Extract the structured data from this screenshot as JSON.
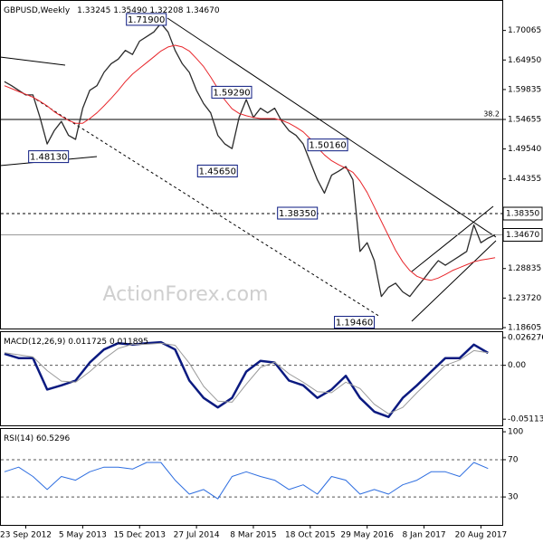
{
  "chart_data": [
    {
      "type": "line",
      "title": "GBPUSD,Weekly",
      "subtitle": "1.33245 1.35490 1.32208 1.34670",
      "watermark": "ActionForex.com",
      "x": [
        -12,
        -8,
        -4,
        0,
        4,
        8,
        12,
        16,
        20,
        24,
        28,
        32,
        36,
        40,
        44,
        48,
        52,
        56,
        60,
        64,
        68,
        72,
        76,
        80,
        84,
        88,
        92,
        96,
        100,
        104,
        108,
        112,
        116,
        120,
        124,
        128,
        132,
        136,
        140,
        144,
        148,
        152,
        156,
        160,
        164,
        168,
        172,
        176,
        180,
        184,
        188,
        192,
        196,
        200,
        204,
        208,
        212,
        216,
        220,
        224,
        228,
        232,
        236,
        240,
        244,
        248,
        252,
        256,
        260,
        264
      ],
      "xlim": [
        -14,
        268
      ],
      "series": [
        {
          "color": "#2b2b2b",
          "width": 1.3,
          "values": [
            1.612,
            1.605,
            1.597,
            1.589,
            1.589,
            1.55,
            1.504,
            1.527,
            1.543,
            1.519,
            1.512,
            1.566,
            1.597,
            1.605,
            1.628,
            1.643,
            1.651,
            1.666,
            1.659,
            1.682,
            1.69,
            1.698,
            1.713,
            1.698,
            1.666,
            1.643,
            1.628,
            1.597,
            1.574,
            1.558,
            1.519,
            1.504,
            1.496,
            1.55,
            1.581,
            1.55,
            1.566,
            1.558,
            1.566,
            1.543,
            1.527,
            1.519,
            1.504,
            1.473,
            1.442,
            1.419,
            1.45,
            1.457,
            1.465,
            1.442,
            1.318,
            1.333,
            1.302,
            1.24,
            1.256,
            1.263,
            1.248,
            1.24,
            1.256,
            1.271,
            1.287,
            1.302,
            1.294,
            1.302,
            1.31,
            1.318,
            1.364,
            1.333,
            1.341,
            1.3467
          ]
        },
        {
          "color": "#e8262b",
          "width": 1,
          "values": [
            1.605,
            1.6,
            1.595,
            1.59,
            1.585,
            1.578,
            1.57,
            1.56,
            1.552,
            1.545,
            1.54,
            1.54,
            1.548,
            1.558,
            1.57,
            1.583,
            1.597,
            1.612,
            1.625,
            1.635,
            1.645,
            1.655,
            1.665,
            1.672,
            1.675,
            1.672,
            1.665,
            1.652,
            1.638,
            1.62,
            1.6,
            1.58,
            1.565,
            1.557,
            1.553,
            1.55,
            1.548,
            1.548,
            1.548,
            1.545,
            1.54,
            1.533,
            1.525,
            1.513,
            1.498,
            1.485,
            1.475,
            1.468,
            1.462,
            1.455,
            1.44,
            1.42,
            1.395,
            1.37,
            1.345,
            1.32,
            1.3,
            1.285,
            1.275,
            1.27,
            1.268,
            1.272,
            1.278,
            1.285,
            1.29,
            1.295,
            1.3,
            1.303,
            1.305,
            1.307
          ]
        }
      ],
      "ylim": [
        1.1845,
        1.7518
      ],
      "yticks": [
        1.70065,
        {
          "value": 1.6495,
          "label": "1.64950"
        },
        1.59835,
        1.54655,
        {
          "value": 1.4954,
          "label": "1.49540"
        },
        1.44355,
        1.28835,
        {
          "value": 1.2372,
          "label": "1.23720"
        },
        1.18605
      ],
      "levels": [
        {
          "value": 1.54655,
          "label": "38.2"
        }
      ],
      "markers": [
        {
          "value": 1.3835,
          "label": "1.38350",
          "style": "dashed"
        },
        {
          "value": 1.3467,
          "label": "1.34670",
          "style": "solid"
        }
      ],
      "annotations": [
        {
          "x": 79,
          "value": 1.719,
          "label": "1.71900"
        },
        {
          "x": 127,
          "value": 1.5929,
          "label": "1.59290"
        },
        {
          "x": 119,
          "value": 1.4565,
          "label": "1.45650"
        },
        {
          "x": 181,
          "value": 1.5016,
          "label": "1.50160"
        },
        {
          "x": 164,
          "value": 1.3835,
          "label": "1.38350"
        },
        {
          "x": 196,
          "value": 1.1946,
          "label": "1.19460"
        },
        {
          "x": 24,
          "value": 1.4813,
          "label": "1.48130"
        }
      ]
    },
    {
      "type": "line",
      "title": "MACD(12,26,9) 0.011725 0.011895",
      "x": [
        -12,
        -4,
        4,
        12,
        20,
        28,
        36,
        44,
        52,
        60,
        68,
        76,
        84,
        92,
        100,
        108,
        116,
        124,
        132,
        140,
        148,
        156,
        164,
        172,
        180,
        188,
        196,
        204,
        212,
        220,
        228,
        236,
        244,
        252,
        260
      ],
      "xlim": [
        -14,
        268
      ],
      "series": [
        {
          "color": "#0b1a80",
          "width": 2.5,
          "values": [
            0.011,
            0.0068,
            0.0068,
            -0.023,
            -0.019,
            -0.0145,
            0.0026,
            0.015,
            0.021,
            0.0196,
            0.021,
            0.022,
            0.015,
            -0.0145,
            -0.031,
            -0.04,
            -0.031,
            -0.006,
            0.0043,
            0.0026,
            -0.0145,
            -0.019,
            -0.031,
            -0.023,
            -0.01,
            -0.031,
            -0.044,
            -0.049,
            -0.031,
            -0.019,
            -0.006,
            0.0068,
            0.0068,
            0.0196,
            0.0117
          ]
        },
        {
          "color": "#9a9a9a",
          "width": 1,
          "values": [
            0.012,
            0.01,
            0.008,
            -0.005,
            -0.015,
            -0.016,
            -0.006,
            0.006,
            0.016,
            0.02,
            0.02,
            0.021,
            0.019,
            0.002,
            -0.02,
            -0.034,
            -0.035,
            -0.018,
            -0.002,
            0.003,
            -0.008,
            -0.016,
            -0.025,
            -0.026,
            -0.016,
            -0.022,
            -0.037,
            -0.046,
            -0.04,
            -0.026,
            -0.013,
            0,
            0.005,
            0.014,
            0.0119
          ]
        }
      ],
      "ylim": [
        -0.057,
        0.0315
      ],
      "yticks": [
        0.026276,
        {
          "value": 0,
          "label": "0.00"
        },
        -0.051137
      ],
      "levels": [
        0
      ]
    },
    {
      "type": "line",
      "title": "RSI(14) 60.5296",
      "x": [
        -12,
        -4,
        4,
        12,
        20,
        28,
        36,
        44,
        52,
        60,
        68,
        76,
        84,
        92,
        100,
        108,
        116,
        124,
        132,
        140,
        148,
        156,
        164,
        172,
        180,
        188,
        196,
        204,
        212,
        220,
        228,
        236,
        244,
        252,
        260
      ],
      "xlim": [
        -14,
        268
      ],
      "series": [
        {
          "color": "#2e6ee0",
          "width": 1,
          "values": [
            57,
            62,
            52,
            38,
            52,
            48,
            57,
            62,
            62,
            60,
            67,
            67,
            48,
            33,
            38,
            28,
            52,
            57,
            52,
            48,
            38,
            43,
            33,
            52,
            48,
            33,
            38,
            33,
            43,
            48,
            57,
            57,
            52,
            67,
            60.5
          ]
        }
      ],
      "ylim": [
        0,
        103
      ],
      "yticks": [
        100,
        70,
        30
      ],
      "levels": [
        70,
        30
      ],
      "xticks": [
        {
          "value": 0,
          "label": "23 Sep 2012"
        },
        {
          "value": 32,
          "label": "5 May 2013"
        },
        {
          "value": 64,
          "label": "15 Dec 2013"
        },
        {
          "value": 96,
          "label": "27 Jul 2014"
        },
        {
          "value": 128,
          "label": "8 Mar 2015"
        },
        {
          "value": 160,
          "label": "18 Oct 2015"
        },
        {
          "value": 192,
          "label": "29 May 2016"
        },
        {
          "value": 224,
          "label": "8 Jan 2017"
        },
        {
          "value": 256,
          "label": "20 Aug 2017"
        }
      ]
    }
  ]
}
